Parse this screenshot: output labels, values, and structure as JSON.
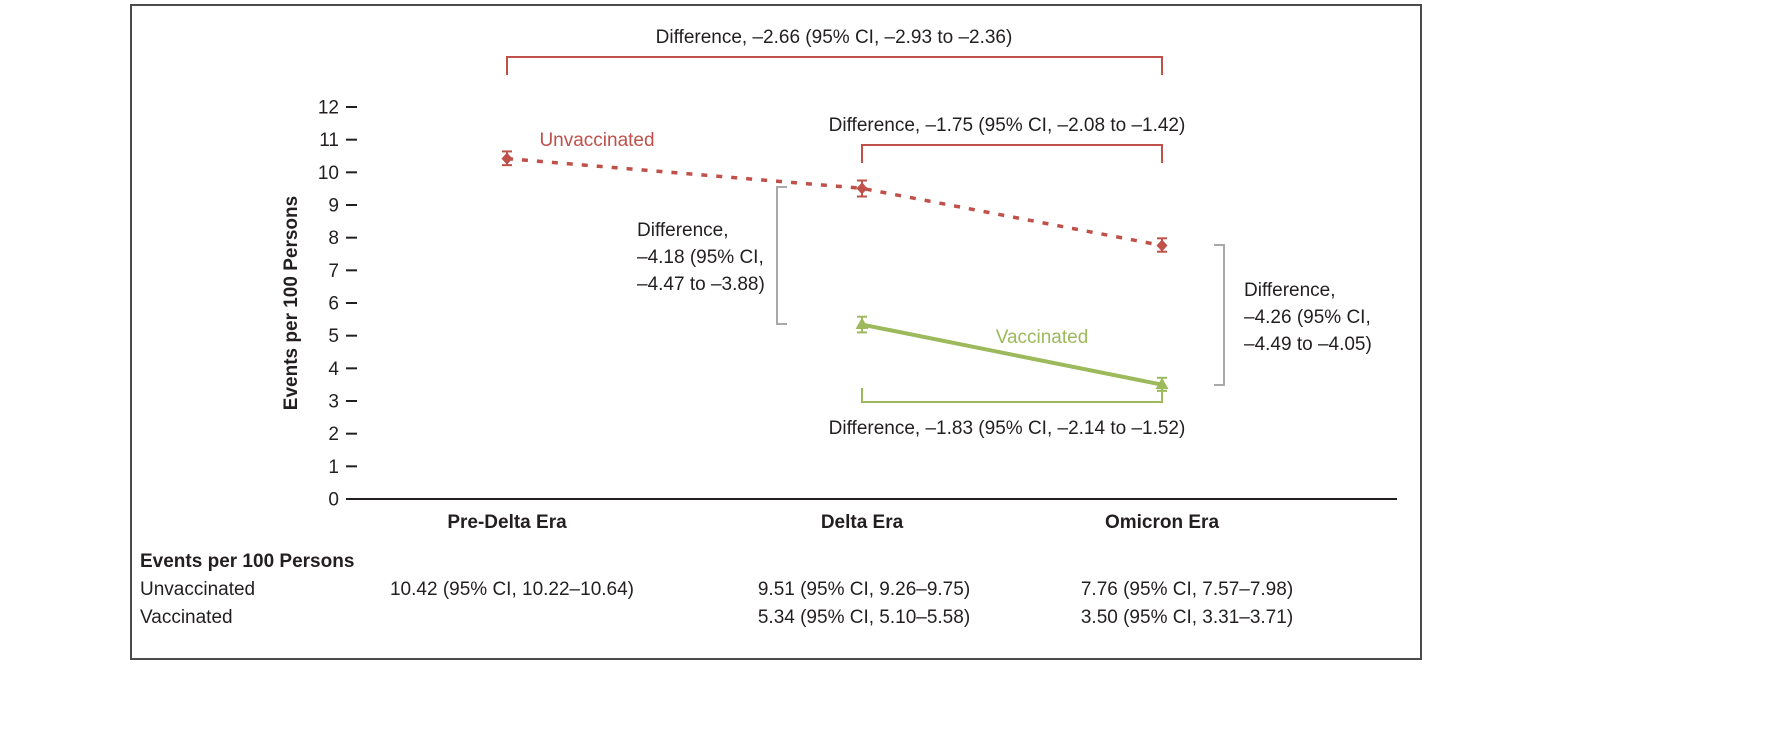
{
  "colors": {
    "axis": "#231f20",
    "text": "#231f20",
    "bracket_gray": "#a7a9ab"
  },
  "chart_data": {
    "type": "line",
    "title": "",
    "xlabel": "",
    "ylabel": "Events per 100 Persons",
    "ylim": [
      0,
      12
    ],
    "ytick_step": 1,
    "grid": false,
    "legend_position": "inline-labels",
    "categories": [
      "Pre-Delta Era",
      "Delta Era",
      "Omicron Era"
    ],
    "series": [
      {
        "name": "Unvaccinated",
        "color": "#c0504a",
        "line_style": "dashed",
        "marker": "diamond",
        "values": [
          10.42,
          9.51,
          7.76
        ],
        "ci_low": [
          10.22,
          9.26,
          7.57
        ],
        "ci_high": [
          10.64,
          9.75,
          7.98
        ]
      },
      {
        "name": "Vaccinated",
        "color": "#9cba5c",
        "line_style": "solid",
        "marker": "triangle",
        "values": [
          null,
          5.34,
          3.5
        ],
        "ci_low": [
          null,
          5.1,
          3.31
        ],
        "ci_high": [
          null,
          5.58,
          3.71
        ]
      }
    ],
    "annotations": {
      "top": "Difference, –2.66 (95% CI, –2.93 to –2.36)",
      "unvacc_delta_omicron": "Difference, –1.75 (95% CI, –2.08 to –1.42)",
      "delta_gap_lines": [
        "Difference,",
        "–4.18 (95% CI,",
        "–4.47 to –3.88)"
      ],
      "omicron_gap_lines": [
        "Difference,",
        "–4.26 (95% CI,",
        "–4.49 to –4.05)"
      ],
      "vacc_delta_omicron": "Difference, –1.83 (95% CI, –2.14 to –1.52)"
    }
  },
  "table": {
    "header": "Events per 100 Persons",
    "rows": [
      {
        "label": "Unvaccinated",
        "values": [
          "10.42 (95% CI, 10.22–10.64)",
          "9.51 (95% CI, 9.26–9.75)",
          "7.76 (95% CI, 7.57–7.98)"
        ]
      },
      {
        "label": "Vaccinated",
        "values": [
          "",
          "5.34 (95% CI, 5.10–5.58)",
          "3.50 (95% CI, 3.31–3.71)"
        ]
      }
    ]
  }
}
